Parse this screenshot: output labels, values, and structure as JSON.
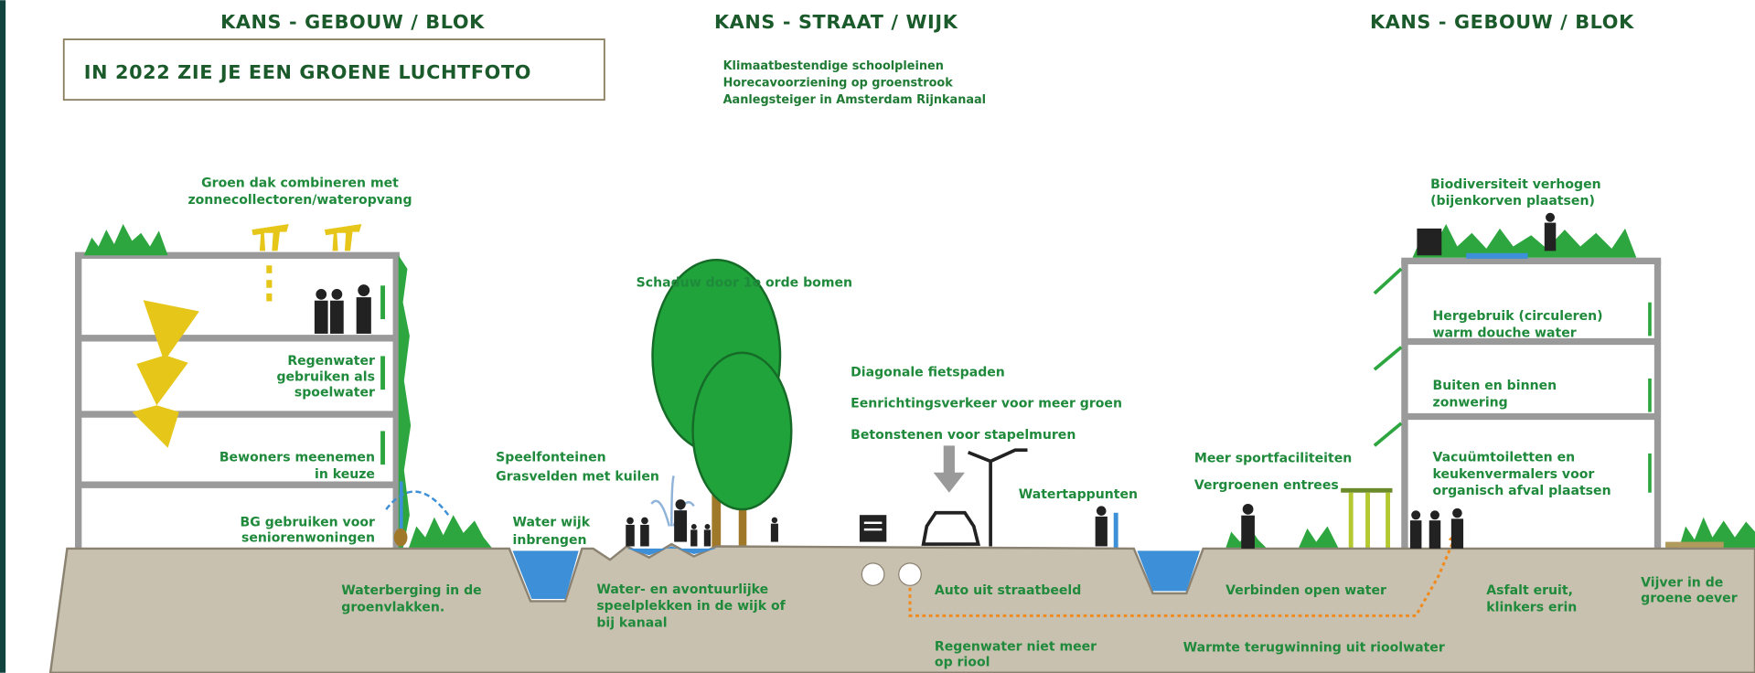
{
  "headers": {
    "left": "KANS - GEBOUW / BLOK",
    "middle": "KANS - STRAAT / WIJK",
    "right": "KANS - GEBOUW / BLOK"
  },
  "banner": "IN 2022 ZIE JE EEN GROENE LUCHTFOTO",
  "street_goals": [
    "Klimaatbestendige schoolpleinen",
    "Horecavoorziening op groenstrook",
    "Aanlegsteiger in Amsterdam Rijnkanaal"
  ],
  "left_building": {
    "roof": [
      "Groen dak combineren met",
      "zonnecollectoren/wateropvang"
    ],
    "rainwater": [
      "Regenwater",
      "gebruiken als",
      "spoelwater"
    ],
    "residents": [
      "Bewoners meenemen",
      "in keuze"
    ],
    "ground_floor": [
      "BG gebruiken voor",
      "seniorenwoningen"
    ]
  },
  "street": {
    "trees": "Schaduw door 1e orde bomen",
    "traffic": [
      "Diagonale fietspaden",
      "Eenrichtingsverkeer voor meer groen",
      "Betonstenen voor stapelmuren"
    ],
    "taps": "Watertappunten",
    "play": [
      "Speelfonteinen",
      "Grasvelden met kuilen"
    ],
    "water": [
      "Water wijk",
      "inbrengen"
    ],
    "sport": [
      "Meer sportfaciliteiten",
      "Vergroenen entrees"
    ]
  },
  "right_building": {
    "biodiversity": [
      "Biodiversiteit verhogen",
      "(bijenkorven plaatsen)"
    ],
    "reuse": [
      "Hergebruik (circuleren)",
      "warm douche water"
    ],
    "shading": [
      "Buiten en binnen",
      "zonwering"
    ],
    "toilets": [
      "Vacuümtoiletten en",
      "keukenvermalers voor",
      "organisch afval plaatsen"
    ]
  },
  "underground": {
    "storage": [
      "Waterberging in de",
      "groenvlakken."
    ],
    "playgrounds": [
      "Water- en avontuurlijke",
      "speelplekken in de wijk of",
      "bij kanaal"
    ],
    "cars": "Auto uit straatbeeld",
    "sewer": [
      "Regenwater niet meer",
      "op riool"
    ],
    "open_water": "Verbinden open water",
    "heat": "Warmte terugwinning uit rioolwater",
    "paving": [
      "Asfalt eruit,",
      "klinkers erin"
    ],
    "pond": [
      "Vijver in de",
      "groene oever"
    ]
  }
}
